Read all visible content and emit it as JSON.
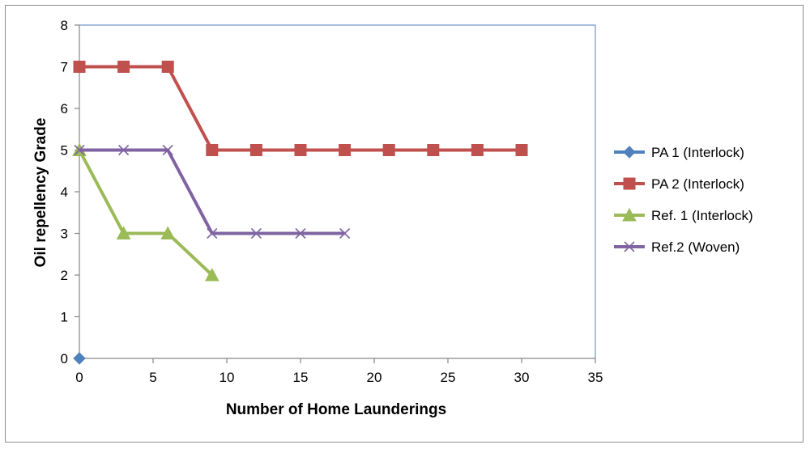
{
  "chart_data": {
    "type": "line",
    "title": "",
    "xlabel": "Number of Home Launderings",
    "ylabel": "Oil repellency Grade",
    "xlim": [
      0,
      35
    ],
    "ylim": [
      0,
      8
    ],
    "xticks": [
      0,
      5,
      10,
      15,
      20,
      25,
      30,
      35
    ],
    "yticks": [
      0,
      1,
      2,
      3,
      4,
      5,
      6,
      7,
      8
    ],
    "grid": false,
    "legend_position": "right",
    "series": [
      {
        "name": "PA 1 (Interlock)",
        "color": "#4f81bd",
        "marker": "diamond",
        "x": [
          0
        ],
        "y": [
          0
        ]
      },
      {
        "name": "PA 2 (Interlock)",
        "color": "#c0504d",
        "marker": "square",
        "x": [
          0,
          3,
          6,
          9,
          12,
          15,
          18,
          21,
          24,
          27,
          30
        ],
        "y": [
          7,
          7,
          7,
          5,
          5,
          5,
          5,
          5,
          5,
          5,
          5
        ]
      },
      {
        "name": "Ref. 1 (Interlock)",
        "color": "#9bbb59",
        "marker": "triangle",
        "x": [
          0,
          3,
          6,
          9
        ],
        "y": [
          5,
          3,
          3,
          2
        ]
      },
      {
        "name": "Ref.2 (Woven)",
        "color": "#8064a2",
        "marker": "x",
        "x": [
          0,
          3,
          6,
          9,
          12,
          15,
          18
        ],
        "y": [
          5,
          5,
          5,
          3,
          3,
          3,
          3
        ]
      }
    ]
  }
}
